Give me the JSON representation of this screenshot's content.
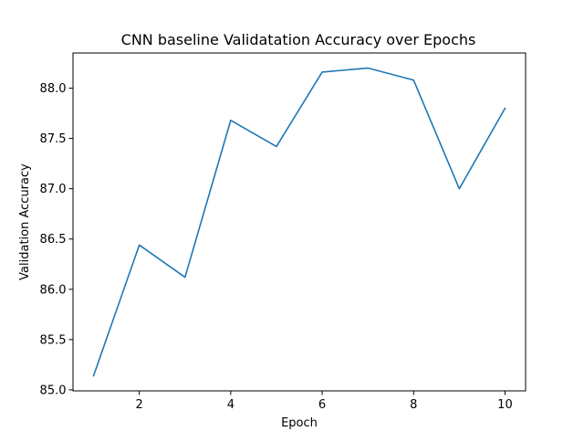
{
  "chart_data": {
    "type": "line",
    "title": "CNN baseline Validatation Accuracy over Epochs",
    "xlabel": "Epoch",
    "ylabel": "Validation Accuracy",
    "xlim": [
      0.55,
      10.45
    ],
    "ylim": [
      84.99,
      88.35
    ],
    "xticks": [
      2,
      4,
      6,
      8,
      10
    ],
    "yticks": [
      85.0,
      85.5,
      86.0,
      86.5,
      87.0,
      87.5,
      88.0
    ],
    "xtick_labels": [
      "2",
      "4",
      "6",
      "8",
      "10"
    ],
    "ytick_labels": [
      "85.0",
      "85.5",
      "86.0",
      "86.5",
      "87.0",
      "87.5",
      "88.0"
    ],
    "grid": false,
    "legend": "none",
    "series": [
      {
        "color": "#1f77b4",
        "x": [
          1,
          2,
          3,
          4,
          5,
          6,
          7,
          8,
          9,
          10
        ],
        "values": [
          85.14,
          86.44,
          86.12,
          87.68,
          87.42,
          88.16,
          88.2,
          88.08,
          87.0,
          87.8
        ]
      }
    ]
  }
}
